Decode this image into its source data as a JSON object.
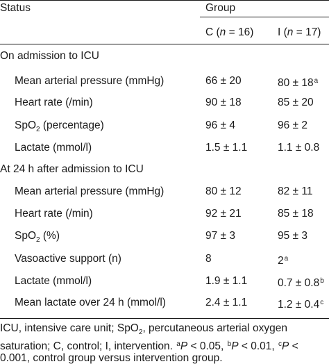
{
  "header": {
    "status": "Status",
    "group": "Group",
    "col_c_label": "C (",
    "col_c_n": "n",
    "col_c_val": " = 16)",
    "col_i_label": "I (",
    "col_i_n": "n",
    "col_i_val": " = 17)"
  },
  "sections": [
    {
      "title": "On admission to ICU",
      "rows": [
        {
          "label": "Mean arterial pressure (mmHg)",
          "c": "66 ± 20",
          "i": "80 ± 18",
          "i_sup": "a"
        },
        {
          "label": "Heart rate (/min)",
          "c": "90 ± 18",
          "i": "85 ± 20"
        },
        {
          "label_pre": "SpO",
          "label_sub": "2",
          "label_post": " (percentage)",
          "c": "96 ± 4",
          "i": "96 ± 2"
        },
        {
          "label": "Lactate (mmol/l)",
          "c": "1.5 ± 1.1",
          "i": "1.1 ± 0.8"
        }
      ]
    },
    {
      "title": "At 24 h after admission to ICU",
      "rows": [
        {
          "label": "Mean arterial pressure (mmHg)",
          "c": "80 ± 12",
          "i": "82 ± 11"
        },
        {
          "label": "Heart rate (/min)",
          "c": "92 ± 21",
          "i": "85 ± 18"
        },
        {
          "label_pre": "SpO",
          "label_sub": "2",
          "label_post": " (%)",
          "c": "97 ± 3",
          "i": "95 ± 3"
        },
        {
          "label": "Vasoactive support (n)",
          "c": "8",
          "i": "2",
          "i_sup": "a"
        },
        {
          "label": "Lactate (mmol/l)",
          "c": "1.9 ± 1.1",
          "i": "0.7 ± 0.8",
          "i_sup": "b"
        },
        {
          "label": "Mean lactate over 24 h (mmol/l)",
          "c": "2.4 ± 1.1",
          "i": "1.2 ± 0.4",
          "i_sup": "c"
        }
      ]
    }
  ],
  "footnote": {
    "p1": "ICU, intensive care unit; SpO",
    "p1_sub": "2",
    "p2": ", percutaneous arterial oxygen saturation; C, control; I, intervention. ",
    "a": "a",
    "a_p": "P",
    "a_text": " < 0.05, ",
    "b": "b",
    "b_p": "P",
    "b_text": " < 0.01, ",
    "c": "c",
    "c_p": "P",
    "c_text": " < 0.001, control group versus intervention group."
  }
}
